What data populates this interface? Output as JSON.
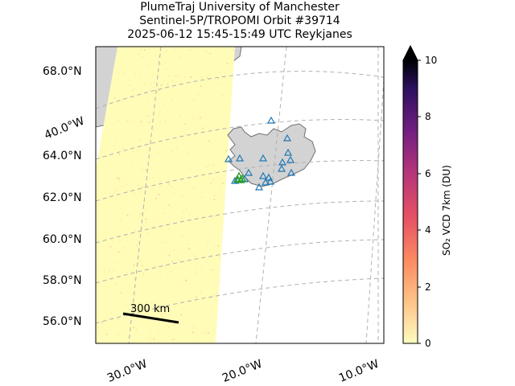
{
  "title": {
    "line1": "PlumeTraj    University of Manchester",
    "line2": "Sentinel-5P/TROPOMI Orbit #39714",
    "line3": "2025-06-12   15:45-15:49 UTC   Reykjanes"
  },
  "lat_labels": [
    "68.0°N",
    "64.0°N",
    "62.0°N",
    "60.0°N",
    "58.0°N",
    "56.0°N"
  ],
  "lon_labels": [
    "40.0°W",
    "30.0°W",
    "20.0°W",
    "10.0°W"
  ],
  "scale_bar": {
    "label": "300 km"
  },
  "colorbar": {
    "label": "SO₂ VCD 7km (DU)",
    "ticks": [
      "10",
      "8",
      "6",
      "4",
      "2",
      "0"
    ],
    "min": 0,
    "max": 10,
    "extend": "max",
    "colormap": "magma_r"
  },
  "colors": {
    "land": "#d3d3d3",
    "coast": "#707070",
    "swath": "#fffcb8",
    "grid": "#b0b0b0",
    "volcano_marker": "#1f77b4",
    "active_volcano": "#2ca02c"
  }
}
